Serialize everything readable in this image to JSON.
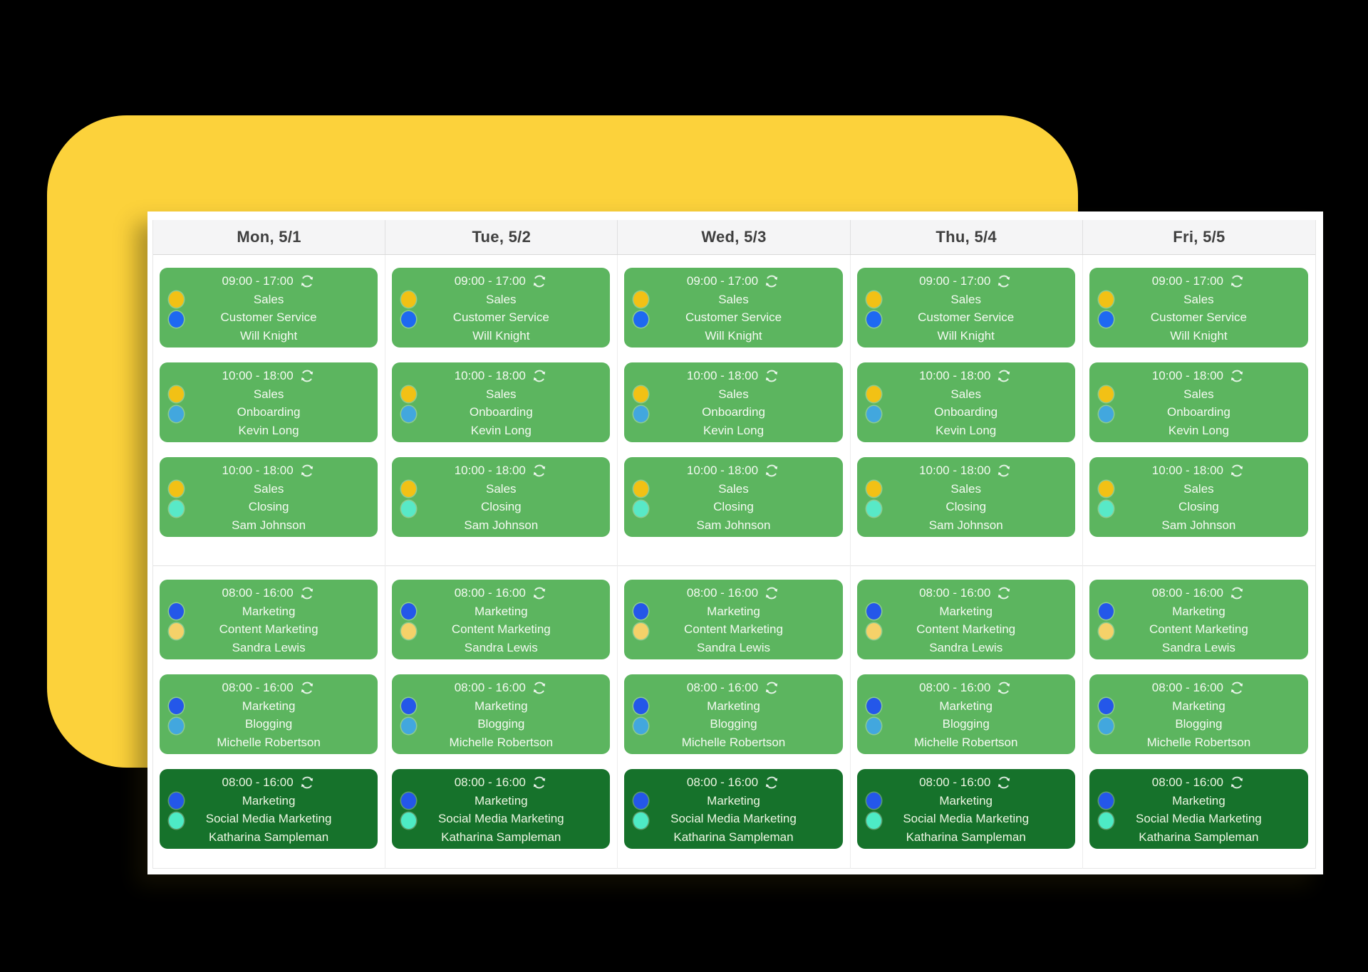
{
  "theme": {
    "page_bg": "#000000",
    "yellow_shape": "#fcd23b",
    "panel_bg": "#ffffff",
    "header_bg": "#f5f5f6",
    "header_text": "#3f3f3f",
    "divider": "#e6e6e6",
    "card_green": "#5cb55f",
    "card_dark_green": "#16722b",
    "card_text": "#f4faf1",
    "card_text_dark_variant": "#edf6e2"
  },
  "calendar": {
    "days": [
      "Mon, 5/1",
      "Tue, 5/2",
      "Wed, 5/3",
      "Thu, 5/4",
      "Fri, 5/5"
    ],
    "groups": [
      [
        0,
        1,
        2
      ],
      [
        3,
        4,
        5
      ]
    ],
    "shifts": [
      {
        "time": "09:00 - 17:00",
        "department": "Sales",
        "role": "Customer Service",
        "person": "Will Knight",
        "recurring": true,
        "variant": "green",
        "card_color": "#5cb55f",
        "dots": [
          "#f2c115",
          "#1e69f1"
        ]
      },
      {
        "time": "10:00 - 18:00",
        "department": "Sales",
        "role": "Onboarding",
        "person": "Kevin Long",
        "recurring": true,
        "variant": "green",
        "card_color": "#5cb55f",
        "dots": [
          "#f2c115",
          "#42a7de"
        ]
      },
      {
        "time": "10:00 - 18:00",
        "department": "Sales",
        "role": "Closing",
        "person": "Sam Johnson",
        "recurring": true,
        "variant": "green",
        "card_color": "#5cb55f",
        "dots": [
          "#f2c115",
          "#58e9c7"
        ]
      },
      {
        "time": "08:00 - 16:00",
        "department": "Marketing",
        "role": "Content Marketing",
        "person": "Sandra Lewis",
        "recurring": true,
        "variant": "green",
        "card_color": "#5cb55f",
        "dots": [
          "#2457e9",
          "#f5d169"
        ]
      },
      {
        "time": "08:00 - 16:00",
        "department": "Marketing",
        "role": "Blogging",
        "person": "Michelle Robertson",
        "recurring": true,
        "variant": "green",
        "card_color": "#5cb55f",
        "dots": [
          "#2457e9",
          "#42a7de"
        ]
      },
      {
        "time": "08:00 - 16:00",
        "department": "Marketing",
        "role": "Social Media Marketing",
        "person": "Katharina Sampleman",
        "recurring": true,
        "variant": "dark",
        "card_color": "#16722b",
        "dots": [
          "#2457e9",
          "#4debc5"
        ]
      }
    ]
  },
  "icons": {
    "recurring": "sync-arrows-icon"
  }
}
